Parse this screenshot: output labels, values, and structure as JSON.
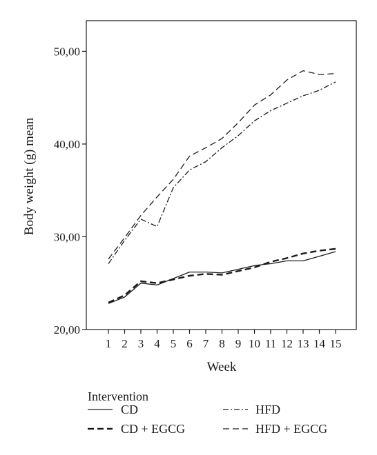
{
  "chart_data": {
    "type": "line",
    "xlabel": "Week",
    "ylabel": "Body weight (g) mean",
    "categories": [
      "1",
      "2",
      "3",
      "4",
      "5",
      "6",
      "7",
      "8",
      "9",
      "10",
      "11",
      "12",
      "13",
      "14",
      "15"
    ],
    "ylim": [
      20,
      53.3
    ],
    "yticks": [
      20,
      30,
      40,
      50
    ],
    "ytick_labels": [
      "20,00",
      "30,00",
      "40,00",
      "50,00"
    ],
    "legend_title": "Intervention",
    "series": [
      {
        "name": "CD",
        "style": "solid",
        "color": "#1a1a1a",
        "values": [
          22.8,
          23.5,
          25.0,
          24.8,
          25.5,
          26.2,
          26.2,
          26.1,
          26.5,
          26.9,
          27.1,
          27.4,
          27.4,
          27.9,
          28.4
        ]
      },
      {
        "name": "HFD",
        "style": "dashdot",
        "color": "#1a1a1a",
        "values": [
          27.1,
          29.6,
          31.9,
          31.1,
          35.3,
          37.2,
          38.1,
          39.6,
          40.9,
          42.5,
          43.6,
          44.4,
          45.2,
          45.8,
          46.7
        ]
      },
      {
        "name": "CD + EGCG",
        "style": "bold-dash",
        "color": "#1a1a1a",
        "values": [
          22.9,
          23.7,
          25.2,
          25.0,
          25.4,
          25.8,
          26.0,
          25.9,
          26.3,
          26.7,
          27.3,
          27.7,
          28.2,
          28.5,
          28.7
        ]
      },
      {
        "name": "HFD + EGCG",
        "style": "dash",
        "color": "#1a1a1a",
        "values": [
          27.6,
          29.9,
          32.3,
          34.3,
          36.2,
          38.7,
          39.6,
          40.6,
          42.3,
          44.2,
          45.3,
          46.9,
          47.9,
          47.5,
          47.6
        ]
      }
    ]
  }
}
